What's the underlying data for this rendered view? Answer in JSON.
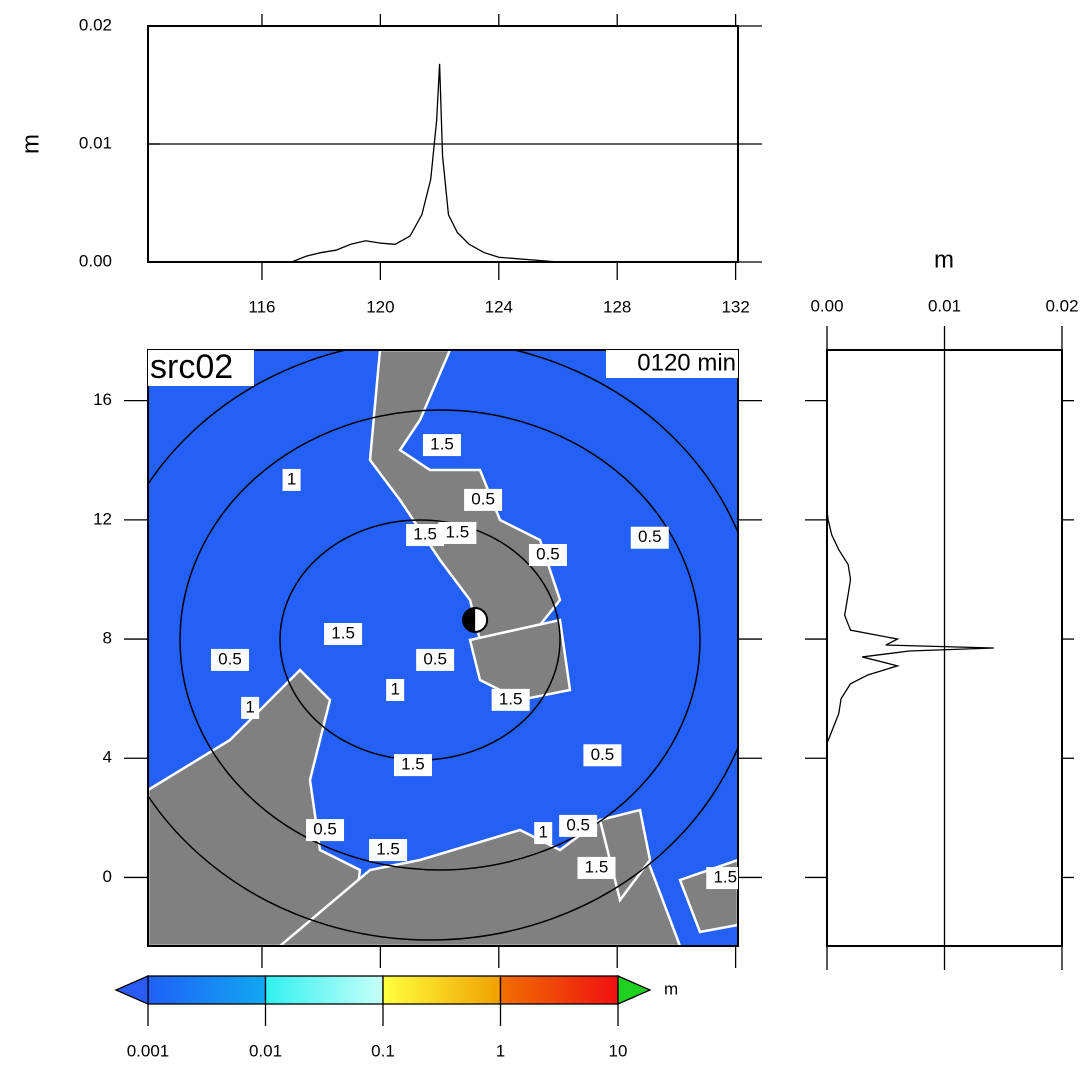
{
  "chart_data": [
    {
      "type": "line",
      "ylabel": "m",
      "x": [
        117,
        117.5,
        118,
        118.5,
        119,
        119.5,
        120,
        120.5,
        121,
        121.4,
        121.7,
        121.9,
        122,
        122.1,
        122.3,
        122.6,
        123,
        123.5,
        124,
        124.5,
        125,
        125.5,
        126
      ],
      "values": [
        0,
        0.0005,
        0.0008,
        0.001,
        0.0015,
        0.0018,
        0.0016,
        0.0015,
        0.0022,
        0.004,
        0.007,
        0.012,
        0.0168,
        0.009,
        0.004,
        0.0025,
        0.0015,
        0.0008,
        0.0004,
        0.0003,
        0.0002,
        0.0001,
        0
      ],
      "color": "#000000",
      "xlim": [
        112.15,
        132.08
      ],
      "xticks": [
        116,
        120,
        124,
        128,
        132
      ],
      "ylim": [
        0,
        0.02
      ],
      "yticks": [
        {
          "value": 0,
          "label": "0.00"
        },
        0.01,
        0.02
      ],
      "grid": true
    },
    {
      "type": "map",
      "title": "src02",
      "subtitle": "0120 min",
      "ocean_color": "#2460f5",
      "land_color": "#808080",
      "xlim": [
        112.15,
        132.08
      ],
      "ylim": [
        -2.3,
        17.7
      ],
      "yticks": [
        0,
        4,
        8,
        12,
        16
      ],
      "source": {
        "lon": 123.2,
        "lat": 8.64
      },
      "contour_labels": [
        {
          "lon": 122.08,
          "lat": 14.51,
          "label": "1.5"
        },
        {
          "lon": 117.0,
          "lat": 13.34,
          "label": "1"
        },
        {
          "lon": 123.47,
          "lat": 12.67,
          "label": "0.5"
        },
        {
          "lon": 121.51,
          "lat": 11.49,
          "label": "1.5"
        },
        {
          "lon": 122.6,
          "lat": 11.56,
          "label": "1.5"
        },
        {
          "lon": 129.1,
          "lat": 11.4,
          "label": "0.5"
        },
        {
          "lon": 125.66,
          "lat": 10.82,
          "label": "0.5"
        },
        {
          "lon": 118.74,
          "lat": 8.17,
          "label": "1.5"
        },
        {
          "lon": 114.92,
          "lat": 7.3,
          "label": "0.5"
        },
        {
          "lon": 121.85,
          "lat": 7.3,
          "label": "0.5"
        },
        {
          "lon": 120.5,
          "lat": 6.29,
          "label": "1"
        },
        {
          "lon": 124.4,
          "lat": 5.96,
          "label": "1.5"
        },
        {
          "lon": 115.6,
          "lat": 5.69,
          "label": "1"
        },
        {
          "lon": 121.1,
          "lat": 3.77,
          "label": "1.5"
        },
        {
          "lon": 127.5,
          "lat": 4.1,
          "label": "0.5"
        },
        {
          "lon": 126.68,
          "lat": 1.73,
          "label": "0.5"
        },
        {
          "lon": 125.5,
          "lat": 1.49,
          "label": "1"
        },
        {
          "lon": 120.26,
          "lat": 0.92,
          "label": "1.5"
        },
        {
          "lon": 118.13,
          "lat": 1.59,
          "label": "0.5"
        },
        {
          "lon": 131.65,
          "lat": -0.02,
          "label": "1.5"
        },
        {
          "lon": 127.3,
          "lat": 0.32,
          "label": "1.5"
        }
      ]
    },
    {
      "type": "line-vertical",
      "xlabel": "m",
      "y": [
        4.5,
        5,
        5.5,
        6,
        6.5,
        6.8,
        7.1,
        7.4,
        7.6,
        7.7,
        7.8,
        8,
        8.3,
        8.8,
        9.5,
        10,
        10.5,
        11,
        11.5,
        12,
        12.3
      ],
      "values": [
        0,
        0.0005,
        0.001,
        0.0012,
        0.002,
        0.0035,
        0.006,
        0.003,
        0.007,
        0.0142,
        0.005,
        0.006,
        0.002,
        0.0015,
        0.0018,
        0.002,
        0.0018,
        0.001,
        0.0004,
        0.0001,
        0
      ],
      "color": "#000000",
      "xlim": [
        0,
        0.02
      ],
      "xticks": [
        {
          "value": 0,
          "label": "0.00"
        },
        0.01,
        0.02
      ],
      "ylim": [
        -2.3,
        17.7
      ],
      "yticks": [
        0,
        4,
        8,
        12,
        16
      ],
      "grid": true
    },
    {
      "type": "colorbar",
      "unit": "m",
      "log": true,
      "xlim": [
        0.001,
        10
      ],
      "xticks": [
        0.001,
        0.01,
        0.1,
        1,
        10
      ],
      "segment_colors": [
        [
          "#2060f8",
          "#10a8f0"
        ],
        [
          "#30f0f0",
          "#c8fff8"
        ],
        [
          "#ffff40",
          "#f0a000"
        ],
        [
          "#f07000",
          "#f01010"
        ]
      ],
      "under_color": "#2a5cf5",
      "over_color": "#20d020"
    }
  ]
}
